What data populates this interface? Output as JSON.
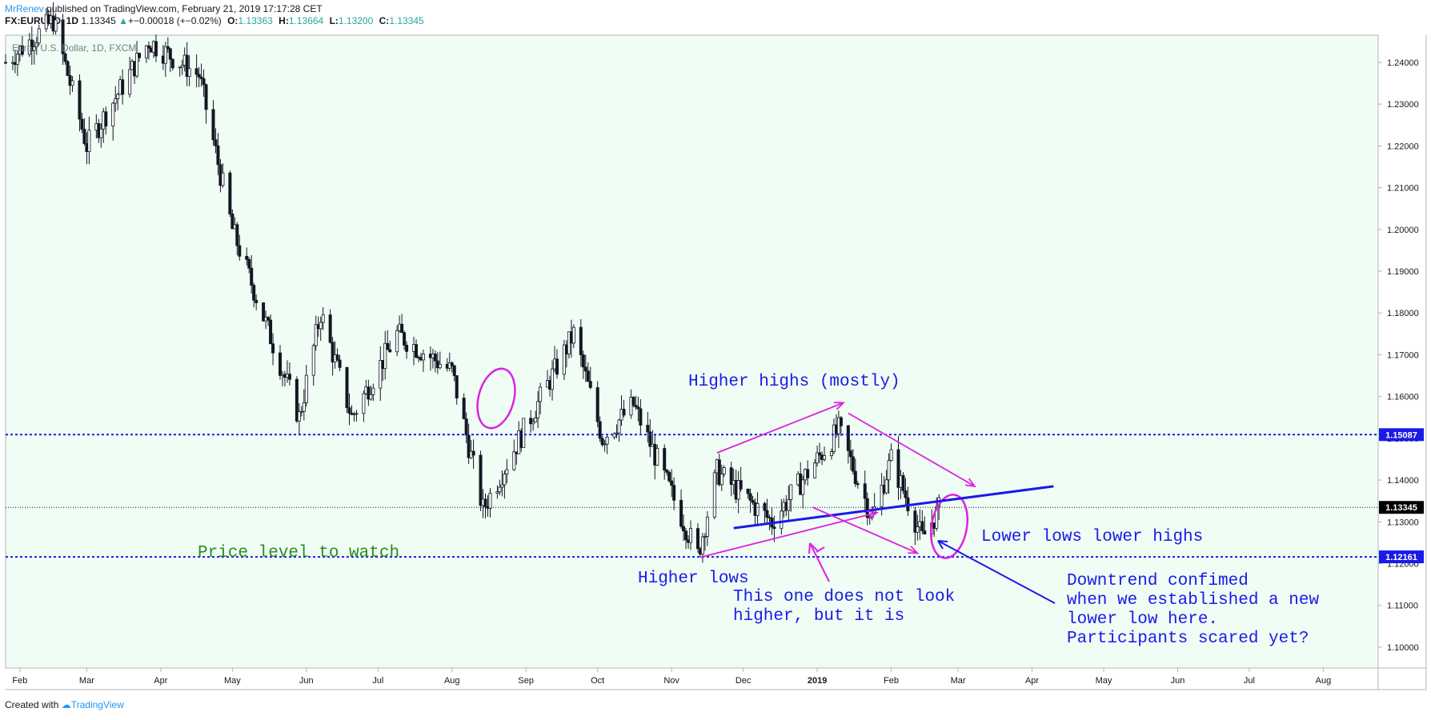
{
  "header": {
    "author": "MrRenev",
    "published": " published on TradingView.com, February 21, 2019 17:17:28 CET",
    "symbol": "FX:EURUSD, 1D",
    "last": "1.13345",
    "change": "+−0.00018 (+−0.02%)",
    "open_label": "O:",
    "open": "1.13363",
    "high_label": "H:",
    "high": "1.13664",
    "low_label": "L:",
    "low": "1.13200",
    "close_label": "C:",
    "close": "1.13345"
  },
  "footer": {
    "prefix": "Created with",
    "brand": "TradingView"
  },
  "colors": {
    "background": "#effdf5",
    "candle": "#131722",
    "level_line": "#1a1ae6",
    "annotation_blue": "#1a1ae6",
    "annotation_magenta": "#e020e0",
    "price_level_text": "#2e8b1e",
    "current_price_badge": "#000000"
  },
  "chart_data": {
    "type": "candlestick",
    "title": "Euro / U.S. Dollar, 1D, FXCM",
    "y_ticks": [
      "1.24000",
      "1.23000",
      "1.22000",
      "1.21000",
      "1.20000",
      "1.19000",
      "1.18000",
      "1.17000",
      "1.16000",
      "1.15000",
      "1.14000",
      "1.13000",
      "1.12000",
      "1.11000",
      "1.10000"
    ],
    "x_ticks": [
      "Feb",
      "Mar",
      "Apr",
      "May",
      "Jun",
      "Jul",
      "Aug",
      "Sep",
      "Oct",
      "Nov",
      "Dec",
      "2019",
      "Feb",
      "Mar",
      "Apr",
      "May",
      "Jun",
      "Jul",
      "Aug"
    ],
    "ylim": [
      1.095,
      1.2465
    ],
    "horizontal_levels": [
      {
        "value": 1.15087,
        "label": "1.15087",
        "style": "dotted"
      },
      {
        "value": 1.12161,
        "label": "1.12161",
        "style": "dotted"
      }
    ],
    "current_price": {
      "value": 1.13345,
      "label": "1.13345"
    },
    "close_path": [
      {
        "date": "2018-01-26",
        "close": 1.24
      },
      {
        "date": "2018-02-15",
        "close": 1.25
      },
      {
        "date": "2018-03-01",
        "close": 1.22
      },
      {
        "date": "2018-03-27",
        "close": 1.245
      },
      {
        "date": "2018-04-17",
        "close": 1.237
      },
      {
        "date": "2018-05-01",
        "close": 1.2
      },
      {
        "date": "2018-05-29",
        "close": 1.155
      },
      {
        "date": "2018-06-07",
        "close": 1.18
      },
      {
        "date": "2018-06-20",
        "close": 1.155
      },
      {
        "date": "2018-07-09",
        "close": 1.175
      },
      {
        "date": "2018-08-01",
        "close": 1.166
      },
      {
        "date": "2018-08-14",
        "close": 1.133
      },
      {
        "date": "2018-09-21",
        "close": 1.175
      },
      {
        "date": "2018-10-03",
        "close": 1.15
      },
      {
        "date": "2018-10-16",
        "close": 1.158
      },
      {
        "date": "2018-11-12",
        "close": 1.122
      },
      {
        "date": "2018-11-20",
        "close": 1.142
      },
      {
        "date": "2018-12-13",
        "close": 1.13
      },
      {
        "date": "2019-01-10",
        "close": 1.152
      },
      {
        "date": "2019-01-24",
        "close": 1.131
      },
      {
        "date": "2019-02-01",
        "close": 1.145
      },
      {
        "date": "2019-02-14",
        "close": 1.126
      },
      {
        "date": "2019-02-21",
        "close": 1.133
      }
    ],
    "annotations": [
      {
        "text": "Higher highs (mostly)",
        "color": "blue"
      },
      {
        "text": "Price level to watch",
        "color": "green"
      },
      {
        "text": "Higher lows",
        "color": "blue"
      },
      {
        "text": "This one does not look higher, but it is",
        "lines": [
          "This one does not look",
          "higher, but it is"
        ],
        "color": "blue"
      },
      {
        "text": "Lower lows lower highs",
        "color": "blue"
      },
      {
        "text": "Downtrend confimed when we established a new lower low here. Participants scared yet?",
        "lines": [
          "Downtrend confimed",
          "when we established a new",
          "lower low here.",
          "Participants scared yet?"
        ],
        "color": "blue"
      }
    ],
    "drawn_lines": [
      {
        "name": "rising-trendline",
        "color": "blue",
        "from": {
          "date": "2018-11-27",
          "value": 1.1285
        },
        "to": {
          "date": "2019-04-10",
          "value": 1.1385
        }
      },
      {
        "name": "higher-highs-arrow",
        "color": "magenta",
        "from": {
          "date": "2018-11-20",
          "value": 1.1465
        },
        "to": {
          "date": "2019-01-12",
          "value": 1.1585
        }
      },
      {
        "name": "higher-lows-arrow",
        "color": "magenta",
        "from": {
          "date": "2018-11-13",
          "value": 1.1215
        },
        "to": {
          "date": "2019-01-26",
          "value": 1.1322
        }
      },
      {
        "name": "lower-highs-arrow",
        "color": "magenta",
        "from": {
          "date": "2019-01-14",
          "value": 1.156
        },
        "to": {
          "date": "2019-03-08",
          "value": 1.1385
        }
      },
      {
        "name": "lower-lows-arrow",
        "color": "magenta",
        "from": {
          "date": "2018-12-30",
          "value": 1.1335
        },
        "to": {
          "date": "2019-02-12",
          "value": 1.1225
        }
      }
    ]
  }
}
